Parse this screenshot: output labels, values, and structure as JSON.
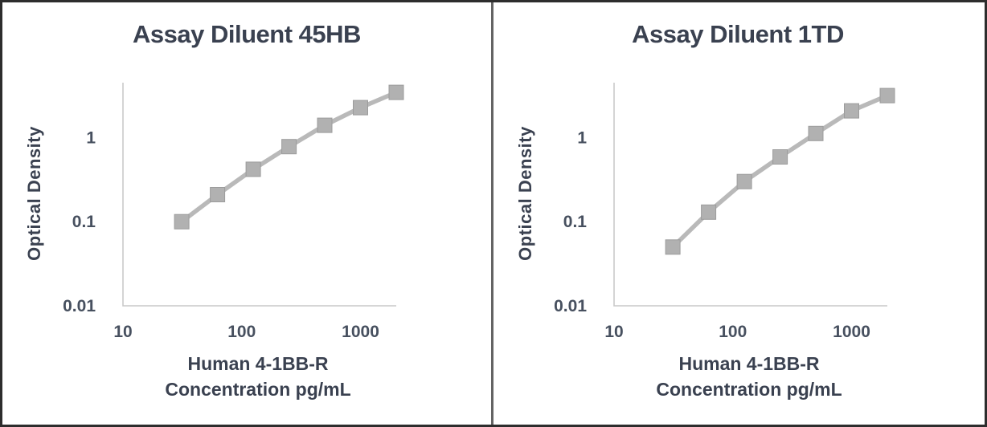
{
  "window": {
    "background": "#ffffff",
    "border_color": "#2d2d2d",
    "divider_color": "#646464"
  },
  "chart_data": [
    {
      "type": "line",
      "title": "Assay Diluent 45HB",
      "ylabel": "Optical Density",
      "xlabel_line1": "Human 4-1BB-R",
      "xlabel_line2": "Concentration pg/mL",
      "x_scale": "log",
      "y_scale": "log",
      "xlim": [
        10,
        2000
      ],
      "ylim": [
        0.01,
        4.5
      ],
      "x_tick_values": [
        10,
        100,
        1000
      ],
      "x_tick_labels": [
        "10",
        "100",
        "1000"
      ],
      "y_tick_values": [
        1,
        0.1,
        0.01
      ],
      "y_tick_labels": [
        "1",
        "0.1",
        "0.01"
      ],
      "x": [
        31.25,
        62.5,
        125,
        250,
        500,
        1000,
        2000
      ],
      "y": [
        0.1,
        0.21,
        0.42,
        0.78,
        1.4,
        2.27,
        3.45
      ],
      "grid": false,
      "legend": false,
      "marker": "square",
      "series_color": "#b9b9b9",
      "marker_fill": "#b1b1b1",
      "marker_edge": "#9c9c9c",
      "axis_color": "#c9c9c9"
    },
    {
      "type": "line",
      "title": "Assay Diluent 1TD",
      "ylabel": "Optical Density",
      "xlabel_line1": "Human 4-1BB-R",
      "xlabel_line2": "Concentration pg/mL",
      "x_scale": "log",
      "y_scale": "log",
      "xlim": [
        10,
        2000
      ],
      "ylim": [
        0.01,
        4.5
      ],
      "x_tick_values": [
        10,
        100,
        1000
      ],
      "x_tick_labels": [
        "10",
        "100",
        "1000"
      ],
      "y_tick_values": [
        1,
        0.1,
        0.01
      ],
      "y_tick_labels": [
        "1",
        "0.1",
        "0.01"
      ],
      "x": [
        31.25,
        62.5,
        125,
        250,
        500,
        1000,
        2000
      ],
      "y": [
        0.05,
        0.13,
        0.3,
        0.59,
        1.12,
        2.08,
        3.16
      ],
      "grid": false,
      "legend": false,
      "marker": "square",
      "series_color": "#b9b9b9",
      "marker_fill": "#b1b1b1",
      "marker_edge": "#9c9c9c",
      "axis_color": "#c9c9c9"
    }
  ]
}
